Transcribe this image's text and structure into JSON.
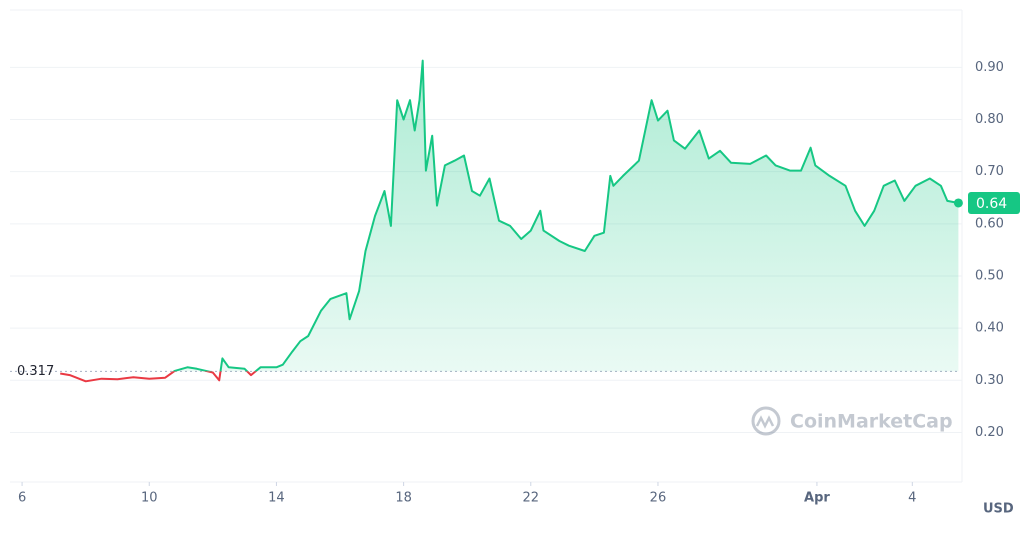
{
  "chart_data": {
    "type": "line",
    "x": [
      1.2,
      1.5,
      2,
      2.5,
      3,
      3.5,
      4,
      4.5,
      4.8,
      5.2,
      5.5,
      6,
      6.2,
      6.3,
      6.5,
      7,
      7.2,
      7.5,
      8,
      8.2,
      8.5,
      8.75,
      9,
      9.4,
      9.7,
      10.2,
      10.3,
      10.6,
      10.8,
      11.1,
      11.4,
      11.6,
      11.8,
      12.0,
      12.2,
      12.35,
      12.5,
      12.6,
      12.7,
      12.9,
      13.05,
      13.3,
      13.6,
      13.9,
      14.15,
      14.4,
      14.7,
      15.0,
      15.35,
      15.7,
      16.0,
      16.3,
      16.4,
      16.9,
      17.2,
      17.7,
      18.0,
      18.3,
      18.5,
      18.6,
      18.9,
      19.4,
      19.8,
      20.0,
      20.3,
      20.5,
      20.85,
      21.3,
      21.6,
      21.95,
      22.3,
      22.9,
      23.4,
      23.7,
      24.15,
      24.5,
      24.8,
      24.95,
      25.4,
      25.9,
      26.2,
      26.5,
      26.8,
      27.1,
      27.45,
      27.75,
      28.1,
      28.55,
      28.9,
      29.1,
      29.45
    ],
    "series": [
      {
        "color": "#16c784",
        "down_color": "#ea3943",
        "values": [
          0.313,
          0.31,
          0.298,
          0.303,
          0.302,
          0.306,
          0.303,
          0.305,
          0.318,
          0.325,
          0.322,
          0.315,
          0.3,
          0.342,
          0.325,
          0.322,
          0.31,
          0.325,
          0.325,
          0.33,
          0.355,
          0.375,
          0.385,
          0.433,
          0.456,
          0.467,
          0.417,
          0.471,
          0.548,
          0.615,
          0.663,
          0.596,
          0.837,
          0.8,
          0.837,
          0.779,
          0.837,
          0.913,
          0.702,
          0.769,
          0.635,
          0.712,
          0.721,
          0.731,
          0.663,
          0.654,
          0.687,
          0.606,
          0.596,
          0.571,
          0.587,
          0.625,
          0.587,
          0.567,
          0.558,
          0.548,
          0.577,
          0.583,
          0.692,
          0.673,
          0.692,
          0.721,
          0.837,
          0.798,
          0.817,
          0.76,
          0.744,
          0.779,
          0.725,
          0.74,
          0.717,
          0.715,
          0.731,
          0.712,
          0.702,
          0.702,
          0.746,
          0.712,
          0.692,
          0.673,
          0.625,
          0.596,
          0.625,
          0.673,
          0.683,
          0.644,
          0.673,
          0.687,
          0.673,
          0.644,
          0.64
        ]
      }
    ],
    "reference_line": 0.317,
    "current_price": 0.64,
    "xlim": [
      -0.38,
      29.5
    ],
    "xticks": [
      {
        "value": 0,
        "label": "6"
      },
      {
        "value": 4,
        "label": "10"
      },
      {
        "value": 8,
        "label": "14"
      },
      {
        "value": 12,
        "label": "18"
      },
      {
        "value": 16,
        "label": "22"
      },
      {
        "value": 20,
        "label": "26"
      },
      {
        "value": 25,
        "label": "Apr"
      },
      {
        "value": 28,
        "label": "4"
      }
    ],
    "ylim": [
      0.105,
      1.01
    ],
    "yticks": [
      {
        "value": 0.2,
        "label": "0.20"
      },
      {
        "value": 0.3,
        "label": "0.30"
      },
      {
        "value": 0.4,
        "label": "0.40"
      },
      {
        "value": 0.5,
        "label": "0.50"
      },
      {
        "value": 0.6,
        "label": "0.60"
      },
      {
        "value": 0.7,
        "label": "0.70"
      },
      {
        "value": 0.8,
        "label": "0.80"
      },
      {
        "value": 0.9,
        "label": "0.90"
      }
    ],
    "grid": true,
    "unit": "USD",
    "watermark": "CoinMarketCap"
  }
}
